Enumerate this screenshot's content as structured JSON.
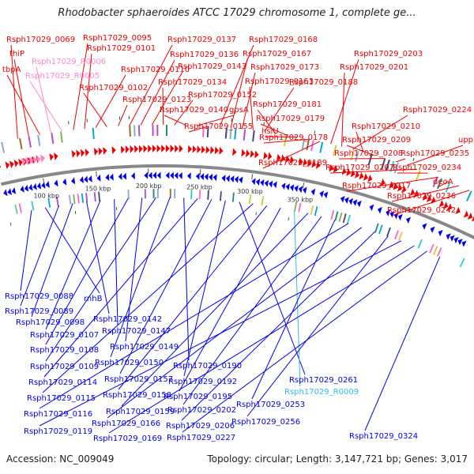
{
  "title": "Rhodobacter sphaeroides ATCC 17029 chromosome 1, complete ge...",
  "footer": {
    "accession": "Accession: NC_009049",
    "summary": "Topology: circular; Length: 3,147,721 bp; Genes: 3,017"
  },
  "colors": {
    "forward": "#ee0000",
    "reverse": "#0000ee",
    "rna": "#ff88cc",
    "highlight": "#33bbee",
    "backbone": "#888888",
    "tick_mark": "#116611"
  },
  "ruler": [
    "100 kbp",
    "150 kbp",
    "200 kbp",
    "250 kbp",
    "300 kbp",
    "350 kbp"
  ],
  "top_labels": [
    {
      "text": "Rsph17029_0069",
      "kind": "forward"
    },
    {
      "text": "thiP",
      "kind": "forward"
    },
    {
      "text": "tbpA",
      "kind": "forward"
    },
    {
      "text": "Rsph17029_R0006",
      "kind": "rna"
    },
    {
      "text": "Rsph17029_R0005",
      "kind": "rna"
    },
    {
      "text": "Rsph17029_0095",
      "kind": "forward"
    },
    {
      "text": "Rsph17029_0101",
      "kind": "forward"
    },
    {
      "text": "Rsph17029_0110",
      "kind": "forward"
    },
    {
      "text": "Rsph17029_0102",
      "kind": "forward"
    },
    {
      "text": "Rsph17029_0123",
      "kind": "forward"
    },
    {
      "text": "Rsph17029_0137",
      "kind": "forward"
    },
    {
      "text": "Rsph17029_0136",
      "kind": "forward"
    },
    {
      "text": "Rsph17029_0143",
      "kind": "forward"
    },
    {
      "text": "Rsph17029_0134",
      "kind": "forward"
    },
    {
      "text": "Rsph17029_0152",
      "kind": "forward"
    },
    {
      "text": "Rsph17029_0140",
      "kind": "forward"
    },
    {
      "text": "gpsA",
      "kind": "forward"
    },
    {
      "text": "Rsph17029_0155",
      "kind": "forward"
    },
    {
      "text": "Rsph17029_0168",
      "kind": "forward"
    },
    {
      "text": "Rsph17029_0167",
      "kind": "forward"
    },
    {
      "text": "Rsph17029_0173",
      "kind": "forward"
    },
    {
      "text": "Rsph17029_0163",
      "kind": "forward"
    },
    {
      "text": "Rsph17029_0188",
      "kind": "forward"
    },
    {
      "text": "Rsph17029_0181",
      "kind": "forward"
    },
    {
      "text": "Rsph17029_0179",
      "kind": "forward"
    },
    {
      "text": "hslU",
      "kind": "forward"
    },
    {
      "text": "Rsph17029_0178",
      "kind": "forward"
    },
    {
      "text": "Rsph17029_0189",
      "kind": "forward"
    },
    {
      "text": "Rsph17029_0203",
      "kind": "forward"
    },
    {
      "text": "Rsph17029_0201",
      "kind": "forward"
    },
    {
      "text": "Rsph17029_0224",
      "kind": "forward"
    },
    {
      "text": "Rsph17029_0210",
      "kind": "forward"
    },
    {
      "text": "Rsph17029_0209",
      "kind": "forward"
    },
    {
      "text": "Rsph17029_0208",
      "kind": "forward"
    },
    {
      "text": "Rsph17029_0235",
      "kind": "forward"
    },
    {
      "text": "upp",
      "kind": "forward"
    },
    {
      "text": "Rsph17029_0207",
      "kind": "forward"
    },
    {
      "text": "Rsph17029_0234",
      "kind": "forward"
    },
    {
      "text": "Rsph17029_0217",
      "kind": "forward"
    },
    {
      "text": "deoA",
      "kind": "forward"
    },
    {
      "text": "Rsph17029_0236",
      "kind": "forward"
    },
    {
      "text": "Rsph17029_0242",
      "kind": "forward"
    }
  ],
  "bottom_labels": [
    {
      "text": "Rsph17029_0088",
      "kind": "reverse"
    },
    {
      "text": "rnhB",
      "kind": "reverse"
    },
    {
      "text": "Rsph17029_0089",
      "kind": "reverse"
    },
    {
      "text": "Rsph17029_0098",
      "kind": "reverse"
    },
    {
      "text": "Rsph17029_0142",
      "kind": "reverse"
    },
    {
      "text": "Rsph17029_0107",
      "kind": "reverse"
    },
    {
      "text": "Rsph17029_0147",
      "kind": "reverse"
    },
    {
      "text": "Rsph17029_0108",
      "kind": "reverse"
    },
    {
      "text": "Rsph17029_0149",
      "kind": "reverse"
    },
    {
      "text": "Rsph17029_0109",
      "kind": "reverse"
    },
    {
      "text": "Rsph17029_0150",
      "kind": "reverse"
    },
    {
      "text": "Rsph17029_0190",
      "kind": "reverse"
    },
    {
      "text": "Rsph17029_0114",
      "kind": "reverse"
    },
    {
      "text": "Rsph17029_0157",
      "kind": "reverse"
    },
    {
      "text": "Rsph17029_0192",
      "kind": "reverse"
    },
    {
      "text": "Rsph17029_0261",
      "kind": "reverse"
    },
    {
      "text": "Rsph17029_0115",
      "kind": "reverse"
    },
    {
      "text": "Rsph17029_0158",
      "kind": "reverse"
    },
    {
      "text": "Rsph17029_0195",
      "kind": "reverse"
    },
    {
      "text": "Rsph17029_R0009",
      "kind": "highlight"
    },
    {
      "text": "Rsph17029_0159",
      "kind": "reverse"
    },
    {
      "text": "Rsph17029_0202",
      "kind": "reverse"
    },
    {
      "text": "Rsph17029_0253",
      "kind": "reverse"
    },
    {
      "text": "Rsph17029_0116",
      "kind": "reverse"
    },
    {
      "text": "Rsph17029_0166",
      "kind": "reverse"
    },
    {
      "text": "Rsph17029_0206",
      "kind": "reverse"
    },
    {
      "text": "Rsph17029_0256",
      "kind": "reverse"
    },
    {
      "text": "Rsph17029_0119",
      "kind": "reverse"
    },
    {
      "text": "Rsph17029_0169",
      "kind": "reverse"
    },
    {
      "text": "Rsph17029_0227",
      "kind": "reverse"
    },
    {
      "text": "Rsph17029_0324",
      "kind": "reverse"
    }
  ]
}
